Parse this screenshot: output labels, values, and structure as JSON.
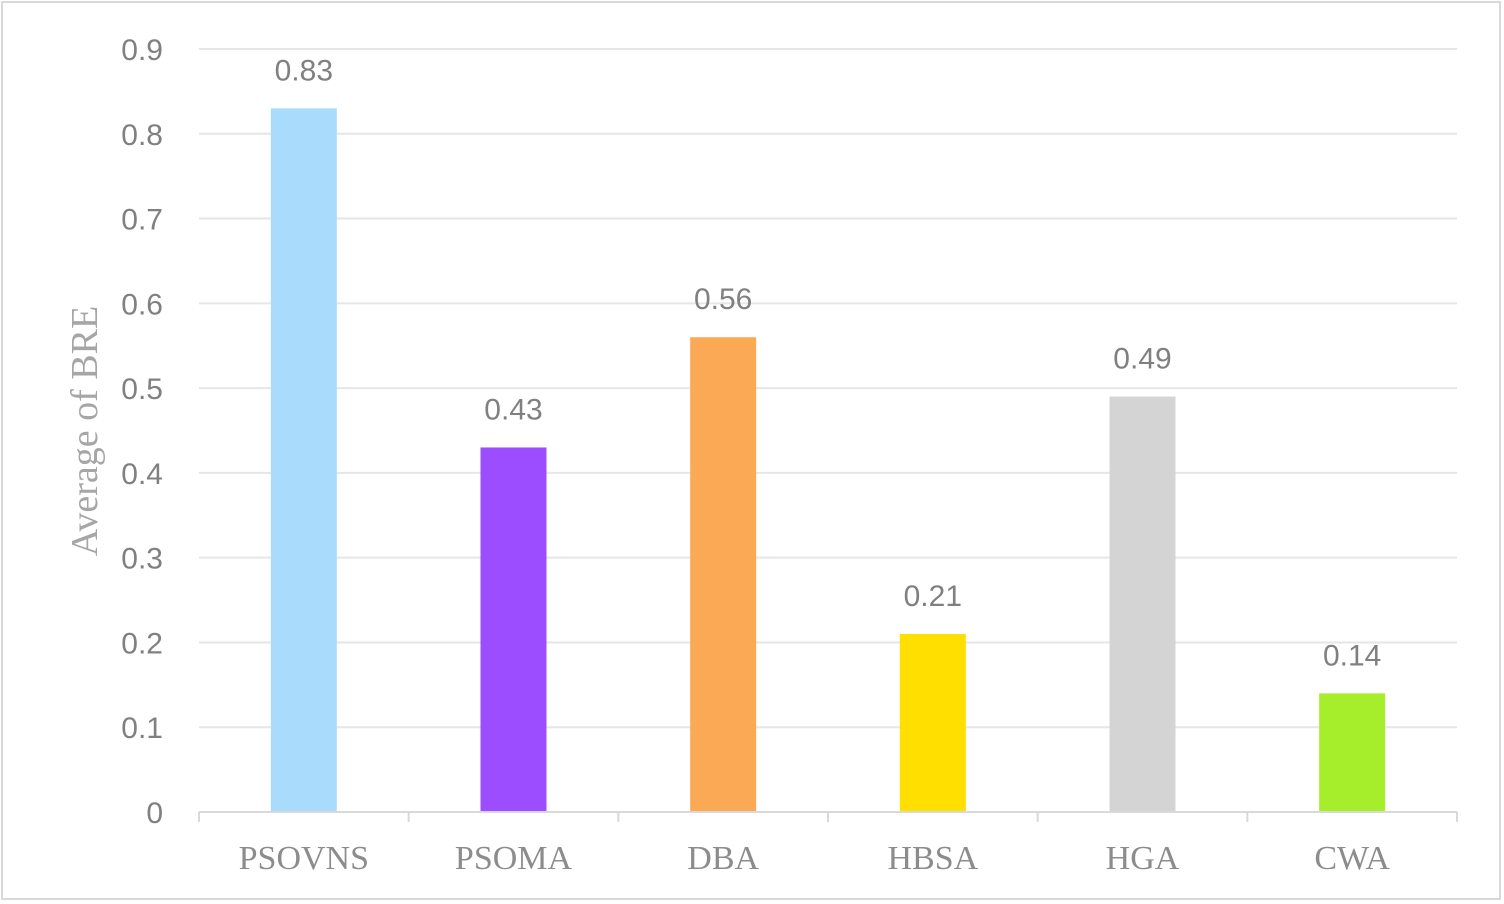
{
  "chart_data": {
    "type": "bar",
    "title": "",
    "xlabel": "",
    "ylabel": "Average of BRE",
    "categories": [
      "PSOVNS",
      "PSOMA",
      "DBA",
      "HBSA",
      "HGA",
      "CWA"
    ],
    "values": [
      0.83,
      0.43,
      0.56,
      0.21,
      0.49,
      0.14
    ],
    "data_labels": [
      "0.83",
      "0.43",
      "0.56",
      "0.21",
      "0.49",
      "0.14"
    ],
    "colors": [
      "#a9dcfc",
      "#9b4dff",
      "#fba954",
      "#ffdf00",
      "#d4d4d4",
      "#a6ee2b"
    ],
    "ylim": [
      0,
      0.9
    ],
    "yticks": [
      0,
      0.1,
      0.2,
      0.3,
      0.4,
      0.5,
      0.6,
      0.7,
      0.8,
      0.9
    ],
    "ytick_labels": [
      "0",
      "0.1",
      "0.2",
      "0.3",
      "0.4",
      "0.5",
      "0.6",
      "0.7",
      "0.8",
      "0.9"
    ],
    "grid": true,
    "legend": "none"
  }
}
